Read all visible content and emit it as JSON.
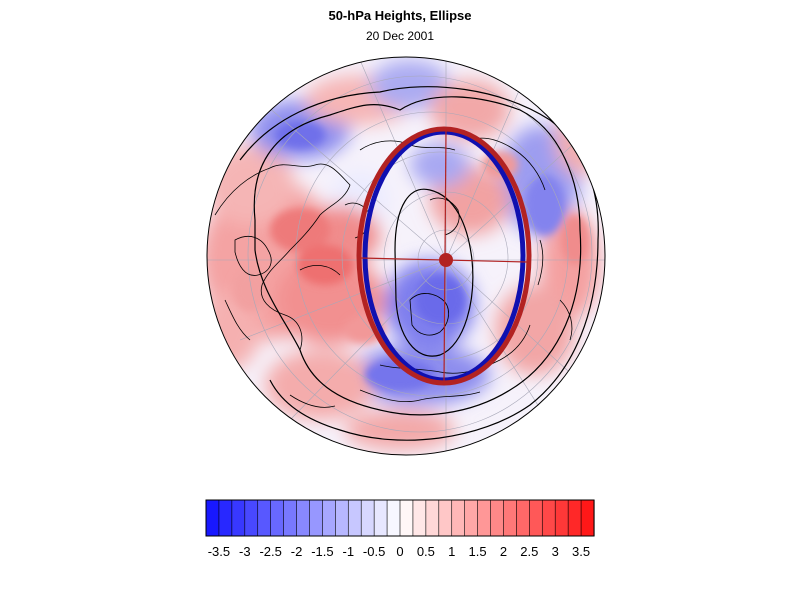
{
  "title": "50-hPa Heights, Ellipse",
  "subtitle": "20 Dec 2001",
  "colorbar": {
    "labels": [
      "-3.5",
      "-3",
      "-2.5",
      "-2",
      "-1.5",
      "-1",
      "-0.5",
      "0",
      "0.5",
      "1",
      "1.5",
      "2",
      "2.5",
      "3",
      "3.5"
    ],
    "min": -3.75,
    "max": 3.75,
    "step": 0.25
  },
  "colors": {
    "negative": "#1010ff",
    "positive": "#ff1010",
    "ellipse_fit": "#b22222",
    "ellipse_obs": "#1010b0",
    "contour": "#000000"
  }
}
